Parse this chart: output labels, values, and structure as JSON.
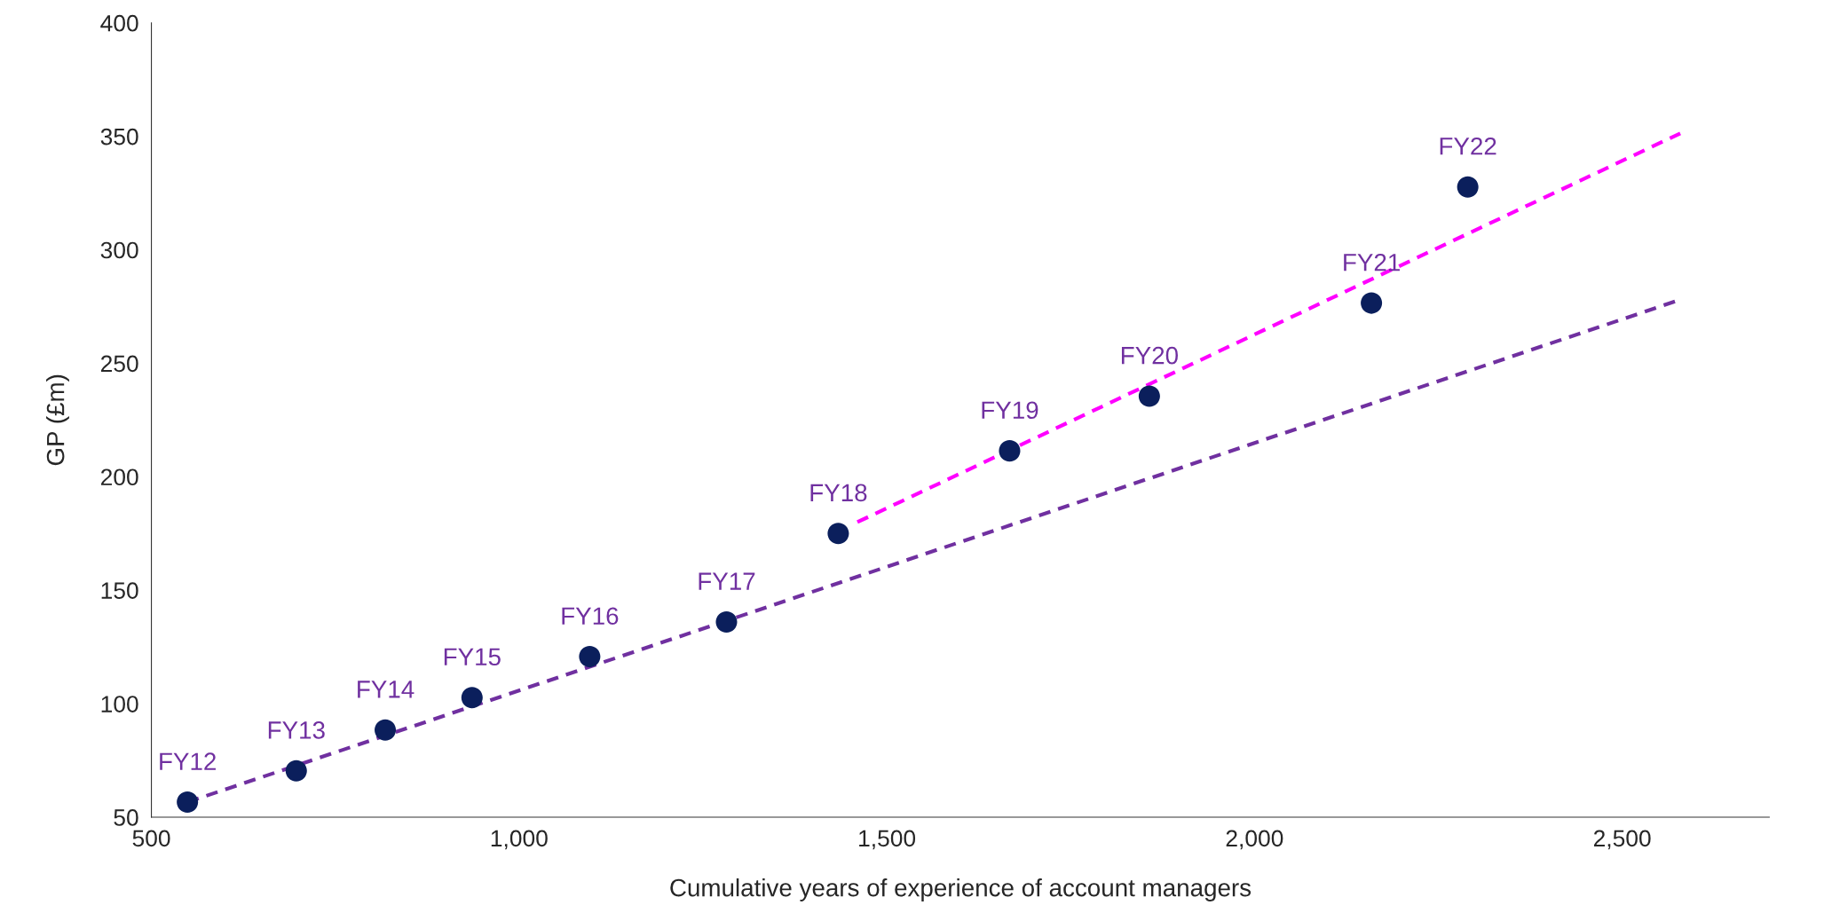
{
  "chart_data": {
    "type": "scatter",
    "xlabel": "Cumulative years of experience of account managers",
    "ylabel": "GP (£m)",
    "xlim": [
      500,
      2700
    ],
    "ylim": [
      50,
      400
    ],
    "xticks": [
      500,
      {
        "value": 1000,
        "label": "1,000"
      },
      {
        "value": 1500,
        "label": "1,500"
      },
      {
        "value": 2000,
        "label": "2,000"
      },
      {
        "value": 2500,
        "label": "2,500"
      }
    ],
    "yticks": [
      50,
      100,
      150,
      200,
      250,
      300,
      350,
      400
    ],
    "grid": false,
    "legend": false,
    "series": [
      {
        "marker": "circle",
        "color": "#0b1f5c",
        "x": [
          549,
          697,
          818,
          936,
          1096,
          1282,
          1434,
          1667,
          1857,
          2159,
          2290
        ],
        "values": [
          56.6,
          70.4,
          88.4,
          102.7,
          120.7,
          136,
          175,
          211.4,
          235.5,
          276.5,
          327.7
        ]
      },
      {
        "type": "line",
        "marker": "none",
        "color": "#7030a0",
        "line_style": "dashed",
        "x": [
          549,
          2579
        ],
        "values": [
          56.6,
          278
        ]
      },
      {
        "type": "line",
        "marker": "none",
        "color": "#ff00ff",
        "line_style": "dashed",
        "x": [
          1460,
          2579
        ],
        "values": [
          180,
          351.3
        ]
      }
    ],
    "annotations": [
      {
        "text": "FY12",
        "x": 549,
        "y": 56.6
      },
      {
        "text": "FY13",
        "x": 697,
        "y": 70.4
      },
      {
        "text": "FY14",
        "x": 818,
        "y": 88.4
      },
      {
        "text": "FY15",
        "x": 936,
        "y": 102.7
      },
      {
        "text": "FY16",
        "x": 1096,
        "y": 120.7
      },
      {
        "text": "FY17",
        "x": 1282,
        "y": 136
      },
      {
        "text": "FY18",
        "x": 1434,
        "y": 175
      },
      {
        "text": "FY19",
        "x": 1667,
        "y": 211.4
      },
      {
        "text": "FY20",
        "x": 1857,
        "y": 235.5
      },
      {
        "text": "FY21",
        "x": 2159,
        "y": 276.5
      },
      {
        "text": "FY22",
        "x": 2290,
        "y": 327.7
      }
    ]
  }
}
